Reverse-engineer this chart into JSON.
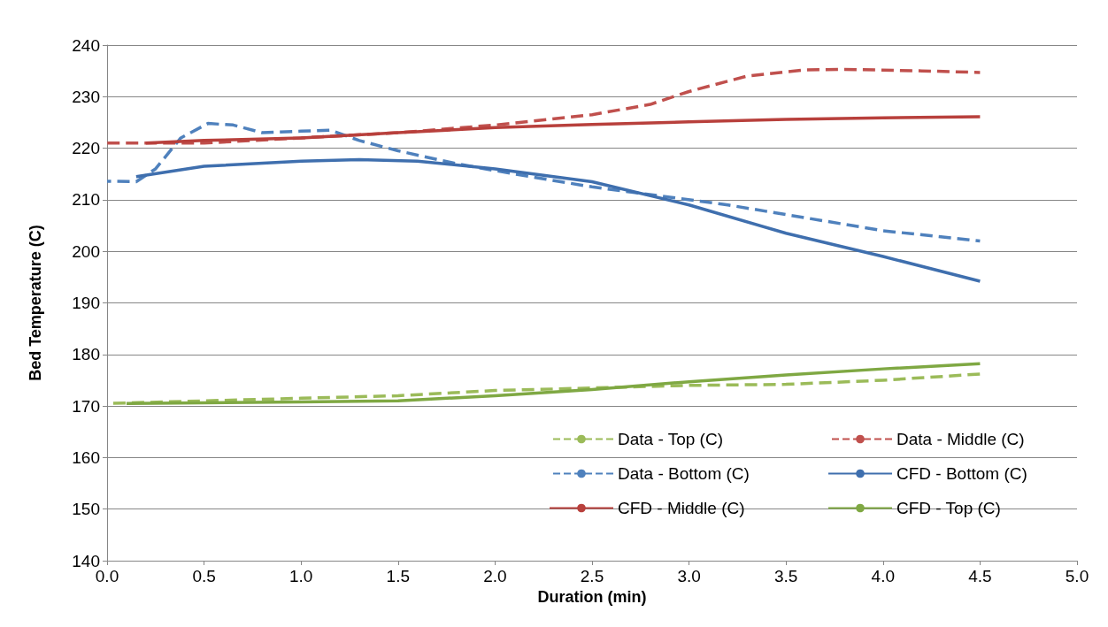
{
  "chart_data": {
    "type": "line",
    "xlabel": "Duration (min)",
    "ylabel": "Bed Temperature (C)",
    "xlim": [
      0,
      5
    ],
    "xticks": [
      {
        "value": 0,
        "label": "0.0"
      },
      {
        "value": 0.5,
        "label": "0.5"
      },
      {
        "value": 1,
        "label": "1.0"
      },
      {
        "value": 1.5,
        "label": "1.5"
      },
      {
        "value": 2,
        "label": "2.0"
      },
      {
        "value": 2.5,
        "label": "2.5"
      },
      {
        "value": 3,
        "label": "3.0"
      },
      {
        "value": 3.5,
        "label": "3.5"
      },
      {
        "value": 4,
        "label": "4.0"
      },
      {
        "value": 4.5,
        "label": "4.5"
      },
      {
        "value": 5,
        "label": "5.0"
      }
    ],
    "ylim": [
      140,
      240
    ],
    "yticks": [
      140,
      150,
      160,
      170,
      180,
      190,
      200,
      210,
      220,
      230,
      240
    ],
    "grid": "y",
    "legend": "bottom right",
    "marker": "none",
    "series": [
      {
        "name": "Data - Top (C)",
        "color": "#9bbb59",
        "line_style": "dashed",
        "x": [
          0,
          0.5,
          1,
          1.5,
          2,
          2.5,
          3,
          3.5,
          4,
          4.5
        ],
        "values": [
          170.5,
          171,
          171.5,
          172,
          173,
          173.5,
          174,
          174.2,
          175,
          176.2
        ]
      },
      {
        "name": "Data - Middle (C)",
        "color": "#c0504d",
        "line_style": "dashed",
        "x": [
          0,
          0.5,
          1,
          1.5,
          2,
          2.5,
          2.8,
          3,
          3.3,
          3.6,
          3.8,
          4.2,
          4.5
        ],
        "values": [
          221,
          221,
          222,
          223,
          224.5,
          226.5,
          228.5,
          231,
          234,
          235.2,
          235.3,
          235,
          234.7
        ]
      },
      {
        "name": "Data - Bottom (C)",
        "color": "#4f81bd",
        "line_style": "dashed",
        "x": [
          0,
          0.15,
          0.25,
          0.38,
          0.52,
          0.65,
          0.8,
          1,
          1.15,
          1.3,
          1.5,
          1.8,
          2.1,
          2.5,
          2.9,
          3.2,
          3.6,
          4,
          4.5
        ],
        "values": [
          213.6,
          213.5,
          216,
          222,
          224.8,
          224.5,
          223,
          223.3,
          223.5,
          221.5,
          219.5,
          217,
          215,
          212.5,
          210.5,
          209,
          206.5,
          204,
          202
        ]
      },
      {
        "name": "CFD - Bottom (C)",
        "color": "#3f6fae",
        "line_style": "solid",
        "x": [
          0.15,
          0.5,
          1,
          1.3,
          1.6,
          2,
          2.5,
          3,
          3.5,
          4,
          4.5
        ],
        "values": [
          214.5,
          216.5,
          217.5,
          217.8,
          217.5,
          216,
          213.5,
          209,
          203.5,
          199,
          194.2
        ]
      },
      {
        "name": "CFD - Middle (C)",
        "color": "#b8403c",
        "line_style": "solid",
        "x": [
          0.2,
          0.5,
          1,
          1.5,
          2,
          2.5,
          3,
          3.5,
          4,
          4.5
        ],
        "values": [
          221,
          221.5,
          222,
          223,
          224,
          224.6,
          225.1,
          225.6,
          225.9,
          226.1
        ]
      },
      {
        "name": "CFD - Top (C)",
        "color": "#7fa843",
        "line_style": "solid",
        "x": [
          0.1,
          0.5,
          1,
          1.5,
          2,
          2.5,
          3,
          3.5,
          4,
          4.5
        ],
        "values": [
          170.5,
          170.6,
          170.8,
          171,
          172,
          173.2,
          174.7,
          176,
          177.2,
          178.2
        ]
      }
    ]
  }
}
